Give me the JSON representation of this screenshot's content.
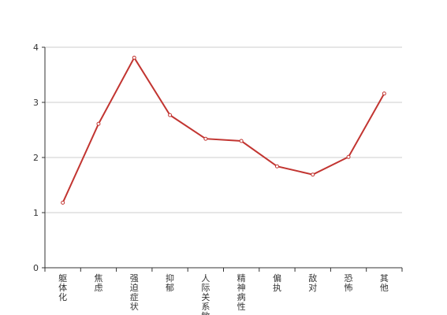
{
  "chart_data": {
    "type": "line",
    "categories": [
      "躯体化",
      "焦虑",
      "强迫症状",
      "抑郁",
      "人际关系敏感",
      "精神病性",
      "偏执",
      "敌对",
      "恐怖",
      "其他"
    ],
    "values": [
      1.18,
      2.61,
      3.81,
      2.77,
      2.34,
      2.3,
      1.84,
      1.69,
      2.01,
      3.16
    ],
    "color": "#c23531",
    "ylim": [
      0,
      4
    ],
    "yticks": [
      0,
      1,
      2,
      3,
      4
    ],
    "grid": true
  }
}
